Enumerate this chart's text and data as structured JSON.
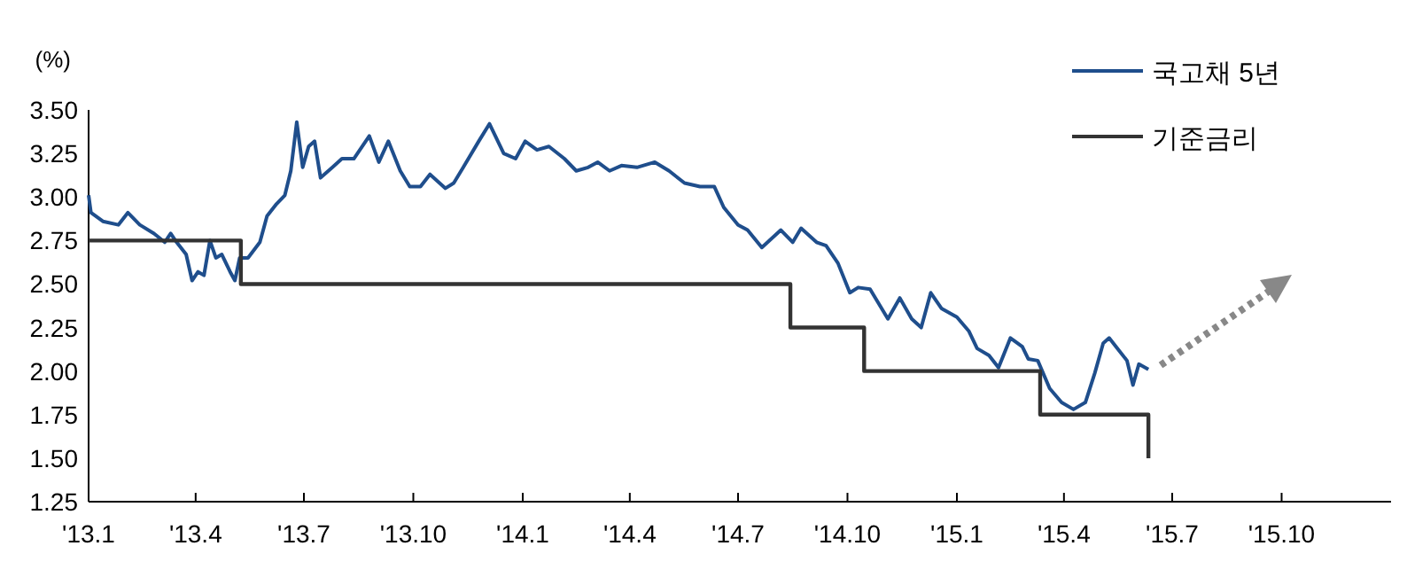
{
  "chart_data": {
    "type": "line",
    "ylabel": "(%)",
    "legend": "top right",
    "grid": false,
    "xlim": [
      "2013-01",
      "2016-01"
    ],
    "xticks": [
      {
        "value": "2013-01",
        "label": "'13.1"
      },
      {
        "value": "2013-04",
        "label": "'13.4"
      },
      {
        "value": "2013-07",
        "label": "'13.7"
      },
      {
        "value": "2013-10",
        "label": "'13.10"
      },
      {
        "value": "2014-01",
        "label": "'14.1"
      },
      {
        "value": "2014-04",
        "label": "'14.4"
      },
      {
        "value": "2014-07",
        "label": "'14.7"
      },
      {
        "value": "2014-10",
        "label": "'14.10"
      },
      {
        "value": "2015-01",
        "label": "'15.1"
      },
      {
        "value": "2015-04",
        "label": "'15.4"
      },
      {
        "value": "2015-07",
        "label": "'15.7"
      },
      {
        "value": "2015-10",
        "label": "'15.10"
      }
    ],
    "ylim": [
      1.25,
      3.5
    ],
    "yticks": [
      {
        "value": 1.25,
        "label": "1.25"
      },
      {
        "value": 1.5,
        "label": "1.50"
      },
      {
        "value": 1.75,
        "label": "1.75"
      },
      {
        "value": 2.0,
        "label": "2.00"
      },
      {
        "value": 2.25,
        "label": "2.25"
      },
      {
        "value": 2.5,
        "label": "2.50"
      },
      {
        "value": 2.75,
        "label": "2.75"
      },
      {
        "value": 3.0,
        "label": "3.00"
      },
      {
        "value": 3.25,
        "label": "3.25"
      },
      {
        "value": 3.5,
        "label": "3.50"
      }
    ],
    "series": [
      {
        "name": "국고채 5년",
        "color": "#1f4e8c",
        "x": [
          "2013-01-01",
          "2013-01-03",
          "2013-01-13",
          "2013-01-26",
          "2013-02-03",
          "2013-02-13",
          "2013-02-25",
          "2013-03-06",
          "2013-03-11",
          "2013-03-16",
          "2013-03-24",
          "2013-03-29",
          "2013-04-03",
          "2013-04-08",
          "2013-04-13",
          "2013-04-18",
          "2013-04-23",
          "2013-04-30",
          "2013-05-04",
          "2013-05-08",
          "2013-05-15",
          "2013-05-25",
          "2013-05-31",
          "2013-06-08",
          "2013-06-15",
          "2013-06-20",
          "2013-06-25",
          "2013-06-30",
          "2013-07-05",
          "2013-07-10",
          "2013-07-15",
          "2013-07-25",
          "2013-08-02",
          "2013-08-12",
          "2013-08-25",
          "2013-09-02",
          "2013-09-10",
          "2013-09-20",
          "2013-09-28",
          "2013-10-07",
          "2013-10-15",
          "2013-10-28",
          "2013-11-04",
          "2013-11-12",
          "2013-11-25",
          "2013-12-04",
          "2013-12-16",
          "2013-12-26",
          "2014-01-03",
          "2014-01-13",
          "2014-01-23",
          "2014-02-05",
          "2014-02-15",
          "2014-02-25",
          "2014-03-05",
          "2014-03-15",
          "2014-03-25",
          "2014-04-07",
          "2014-04-22",
          "2014-05-04",
          "2014-05-17",
          "2014-05-30",
          "2014-06-11",
          "2014-06-19",
          "2014-07-01",
          "2014-07-09",
          "2014-07-21",
          "2014-08-06",
          "2014-08-16",
          "2014-08-23",
          "2014-09-05",
          "2014-09-13",
          "2014-09-23",
          "2014-10-03",
          "2014-10-10",
          "2014-10-20",
          "2014-11-04",
          "2014-11-14",
          "2014-11-24",
          "2014-12-02",
          "2014-12-10",
          "2014-12-19",
          "2015-01-01",
          "2015-01-11",
          "2015-01-18",
          "2015-01-28",
          "2015-02-05",
          "2015-02-15",
          "2015-02-25",
          "2015-03-02",
          "2015-03-10",
          "2015-03-20",
          "2015-03-30",
          "2015-04-09",
          "2015-04-19",
          "2015-04-27",
          "2015-05-04",
          "2015-05-09",
          "2015-05-16",
          "2015-05-24",
          "2015-05-29",
          "2015-06-03",
          "2015-06-11"
        ],
        "values": [
          3.01,
          2.91,
          2.86,
          2.84,
          2.91,
          2.84,
          2.79,
          2.74,
          2.79,
          2.74,
          2.67,
          2.52,
          2.57,
          2.55,
          2.75,
          2.65,
          2.67,
          2.57,
          2.52,
          2.65,
          2.65,
          2.74,
          2.89,
          2.96,
          3.01,
          3.15,
          3.43,
          3.17,
          3.29,
          3.32,
          3.11,
          3.17,
          3.22,
          3.22,
          3.35,
          3.2,
          3.32,
          3.15,
          3.06,
          3.06,
          3.13,
          3.05,
          3.08,
          3.17,
          3.32,
          3.42,
          3.25,
          3.22,
          3.32,
          3.27,
          3.29,
          3.22,
          3.15,
          3.17,
          3.2,
          3.15,
          3.18,
          3.17,
          3.2,
          3.15,
          3.08,
          3.06,
          3.06,
          2.94,
          2.84,
          2.81,
          2.71,
          2.81,
          2.74,
          2.82,
          2.74,
          2.72,
          2.62,
          2.45,
          2.48,
          2.47,
          2.3,
          2.42,
          2.3,
          2.25,
          2.45,
          2.36,
          2.31,
          2.23,
          2.13,
          2.09,
          2.02,
          2.19,
          2.14,
          2.07,
          2.06,
          1.9,
          1.82,
          1.78,
          1.82,
          1.99,
          2.16,
          2.19,
          2.13,
          2.06,
          1.92,
          2.04,
          2.01
        ]
      },
      {
        "name": "기준금리",
        "type": "step",
        "color": "#333333",
        "x": [
          "2013-01-01",
          "2013-05-09",
          "2014-08-14",
          "2014-10-15",
          "2015-03-12",
          "2015-06-11"
        ],
        "values": [
          2.75,
          2.5,
          2.25,
          2.0,
          1.75,
          1.5
        ]
      }
    ]
  }
}
